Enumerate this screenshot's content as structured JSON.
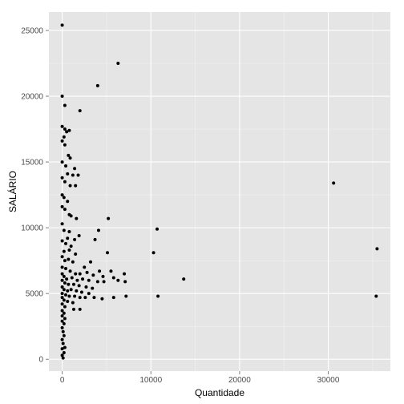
{
  "chart_data": {
    "type": "scatter",
    "title": "",
    "xlabel": "Quantidade",
    "ylabel": "SALÁRIO",
    "xlim": [
      -1500,
      37000
    ],
    "ylim": [
      -900,
      26400
    ],
    "x_ticks": [
      0,
      10000,
      20000,
      30000
    ],
    "x_tick_labels": [
      "0",
      "10000",
      "20000",
      "30000"
    ],
    "y_ticks": [
      0,
      5000,
      10000,
      15000,
      20000,
      25000
    ],
    "y_tick_labels": [
      "0",
      "5000",
      "10000",
      "15000",
      "20000",
      "25000"
    ],
    "grid": true,
    "legend": "none",
    "colors": {
      "panel_background": "#e5e5e5",
      "grid_major": "#ffffff",
      "grid_minor": "#f2f2f2",
      "point": "#000000"
    },
    "series": [
      {
        "values": [
          [
            0,
            25400
          ],
          [
            6300,
            22500
          ],
          [
            4000,
            20800
          ],
          [
            0,
            20000
          ],
          [
            2000,
            18900
          ],
          [
            300,
            19300
          ],
          [
            0,
            17700
          ],
          [
            300,
            17500
          ],
          [
            500,
            17300
          ],
          [
            800,
            17400
          ],
          [
            200,
            16900
          ],
          [
            0,
            16600
          ],
          [
            300,
            16300
          ],
          [
            700,
            15500
          ],
          [
            900,
            15300
          ],
          [
            0,
            15000
          ],
          [
            400,
            14700
          ],
          [
            1400,
            14500
          ],
          [
            1200,
            14000
          ],
          [
            1800,
            14000
          ],
          [
            600,
            14100
          ],
          [
            0,
            13800
          ],
          [
            300,
            13500
          ],
          [
            900,
            13200
          ],
          [
            1500,
            13200
          ],
          [
            0,
            12500
          ],
          [
            200,
            12300
          ],
          [
            600,
            12000
          ],
          [
            0,
            11600
          ],
          [
            300,
            11400
          ],
          [
            800,
            11000
          ],
          [
            1000,
            10900
          ],
          [
            1600,
            10700
          ],
          [
            5200,
            10700
          ],
          [
            4100,
            9800
          ],
          [
            10700,
            9900
          ],
          [
            1900,
            9400
          ],
          [
            3700,
            9100
          ],
          [
            0,
            10300
          ],
          [
            200,
            9800
          ],
          [
            800,
            9700
          ],
          [
            600,
            9200
          ],
          [
            1400,
            9100
          ],
          [
            0,
            9000
          ],
          [
            400,
            8800
          ],
          [
            1000,
            8600
          ],
          [
            200,
            8200
          ],
          [
            800,
            8300
          ],
          [
            1500,
            8000
          ],
          [
            5100,
            8100
          ],
          [
            10300,
            8100
          ],
          [
            700,
            7600
          ],
          [
            1200,
            7400
          ],
          [
            3200,
            7400
          ],
          [
            2500,
            7000
          ],
          [
            4200,
            6700
          ],
          [
            5500,
            6700
          ],
          [
            30600,
            13400
          ],
          [
            35500,
            8400
          ],
          [
            0,
            7800
          ],
          [
            300,
            7500
          ],
          [
            0,
            7000
          ],
          [
            400,
            6900
          ],
          [
            900,
            6700
          ],
          [
            1500,
            6500
          ],
          [
            2000,
            6500
          ],
          [
            2800,
            6600
          ],
          [
            3500,
            6400
          ],
          [
            4600,
            6300
          ],
          [
            5800,
            6200
          ],
          [
            7000,
            6500
          ],
          [
            13700,
            6100
          ],
          [
            0,
            6500
          ],
          [
            200,
            6300
          ],
          [
            500,
            6100
          ],
          [
            1100,
            6200
          ],
          [
            1700,
            6000
          ],
          [
            2300,
            6100
          ],
          [
            3000,
            6000
          ],
          [
            4000,
            5900
          ],
          [
            4700,
            5900
          ],
          [
            6300,
            6000
          ],
          [
            7100,
            5900
          ],
          [
            0,
            6000
          ],
          [
            300,
            5800
          ],
          [
            700,
            5700
          ],
          [
            1300,
            5700
          ],
          [
            1900,
            5600
          ],
          [
            2700,
            5500
          ],
          [
            3400,
            5400
          ],
          [
            0,
            5500
          ],
          [
            200,
            5300
          ],
          [
            600,
            5200
          ],
          [
            1000,
            5300
          ],
          [
            1600,
            5200
          ],
          [
            2200,
            5100
          ],
          [
            3000,
            5000
          ],
          [
            0,
            5000
          ],
          [
            400,
            4900
          ],
          [
            800,
            4800
          ],
          [
            1400,
            4800
          ],
          [
            2000,
            4700
          ],
          [
            2600,
            4700
          ],
          [
            3600,
            4700
          ],
          [
            4500,
            4600
          ],
          [
            5800,
            4700
          ],
          [
            7200,
            4800
          ],
          [
            10800,
            4800
          ],
          [
            35400,
            4800
          ],
          [
            0,
            4700
          ],
          [
            200,
            4500
          ],
          [
            600,
            4400
          ],
          [
            1200,
            4300
          ],
          [
            0,
            4200
          ],
          [
            300,
            4000
          ],
          [
            1300,
            3800
          ],
          [
            2000,
            3800
          ],
          [
            0,
            3700
          ],
          [
            200,
            3500
          ],
          [
            0,
            3300
          ],
          [
            300,
            3100
          ],
          [
            0,
            2900
          ],
          [
            200,
            2700
          ],
          [
            0,
            2400
          ],
          [
            100,
            2100
          ],
          [
            200,
            1800
          ],
          [
            0,
            1500
          ],
          [
            100,
            1200
          ],
          [
            300,
            900
          ],
          [
            0,
            800
          ],
          [
            200,
            500
          ],
          [
            0,
            300
          ],
          [
            100,
            100
          ]
        ]
      }
    ]
  }
}
